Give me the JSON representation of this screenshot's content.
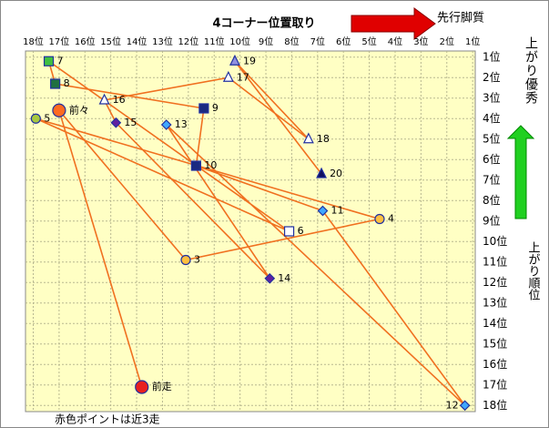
{
  "chart_data": {
    "type": "line",
    "title": "4コーナー位置取り",
    "x_note": "先行脚質",
    "y_note_top": "上がり優秀",
    "y_label": "上がり順位",
    "footnote": "赤色ポイントは近3走",
    "xlim": [
      18.3,
      0.9
    ],
    "ylim": [
      18.3,
      0.7
    ],
    "xticks": [
      {
        "value": 18,
        "label": "18位"
      },
      {
        "value": 17,
        "label": "17位"
      },
      {
        "value": 16,
        "label": "16位"
      },
      {
        "value": 15,
        "label": "15位"
      },
      {
        "value": 14,
        "label": "14位"
      },
      {
        "value": 13,
        "label": "13位"
      },
      {
        "value": 12,
        "label": "12位"
      },
      {
        "value": 11,
        "label": "11位"
      },
      {
        "value": 10,
        "label": "10位"
      },
      {
        "value": 9,
        "label": "9位"
      },
      {
        "value": 8,
        "label": "8位"
      },
      {
        "value": 7,
        "label": "7位"
      },
      {
        "value": 6,
        "label": "6位"
      },
      {
        "value": 5,
        "label": "5位"
      },
      {
        "value": 4,
        "label": "4位"
      },
      {
        "value": 3,
        "label": "3位"
      },
      {
        "value": 2,
        "label": "2位"
      },
      {
        "value": 1,
        "label": "1位"
      }
    ],
    "yticks": [
      {
        "value": 1,
        "label": "1位"
      },
      {
        "value": 2,
        "label": "2位"
      },
      {
        "value": 3,
        "label": "3位"
      },
      {
        "value": 4,
        "label": "4位"
      },
      {
        "value": 5,
        "label": "5位"
      },
      {
        "value": 6,
        "label": "6位"
      },
      {
        "value": 7,
        "label": "7位"
      },
      {
        "value": 8,
        "label": "8位"
      },
      {
        "value": 9,
        "label": "9位"
      },
      {
        "value": 10,
        "label": "10位"
      },
      {
        "value": 11,
        "label": "11位"
      },
      {
        "value": 12,
        "label": "12位"
      },
      {
        "value": 13,
        "label": "13位"
      },
      {
        "value": 14,
        "label": "14位"
      },
      {
        "value": 15,
        "label": "15位"
      },
      {
        "value": 16,
        "label": "16位"
      },
      {
        "value": 17,
        "label": "17位"
      },
      {
        "value": 18,
        "label": "18位"
      }
    ],
    "grid": true,
    "series": [
      {
        "color": "#f07020",
        "labels": [
          "前走",
          "前々",
          "3",
          "4",
          "5",
          "6",
          "7",
          "8",
          "9",
          "10",
          "11",
          "12",
          "13",
          "14",
          "15",
          "16",
          "17",
          "18",
          "19",
          "20"
        ],
        "x": [
          13.8,
          17.0,
          12.1,
          4.6,
          17.9,
          8.1,
          17.4,
          17.15,
          11.4,
          11.7,
          6.8,
          1.3,
          12.85,
          8.85,
          14.8,
          15.25,
          10.45,
          7.35,
          10.2,
          6.85
        ],
        "values": [
          17.1,
          3.6,
          10.9,
          8.9,
          4.0,
          9.5,
          1.2,
          2.3,
          3.5,
          6.3,
          8.5,
          18.0,
          4.3,
          11.8,
          4.2,
          3.1,
          2.0,
          5.0,
          1.2,
          6.7
        ],
        "markers": [
          "circle",
          "circle",
          "circle",
          "circle",
          "circle",
          "square",
          "square",
          "square",
          "square",
          "square",
          "diamond",
          "diamond",
          "diamond",
          "diamond",
          "diamond",
          "triangle",
          "triangle",
          "triangle",
          "triangle",
          "triangle"
        ],
        "marker_colors": [
          "#e82020",
          "#ff6a20",
          "#ffc040",
          "#ffc040",
          "#a8c840",
          "#ffffff",
          "#40c040",
          "#207040",
          "#1a2a80",
          "#1a2a80",
          "#40a8ff",
          "#40a8ff",
          "#40a8ff",
          "#6020a0",
          "#6020a0",
          "#ffffff",
          "#ffffff",
          "#ffffff",
          "#9090e0",
          "#101060"
        ]
      }
    ]
  }
}
